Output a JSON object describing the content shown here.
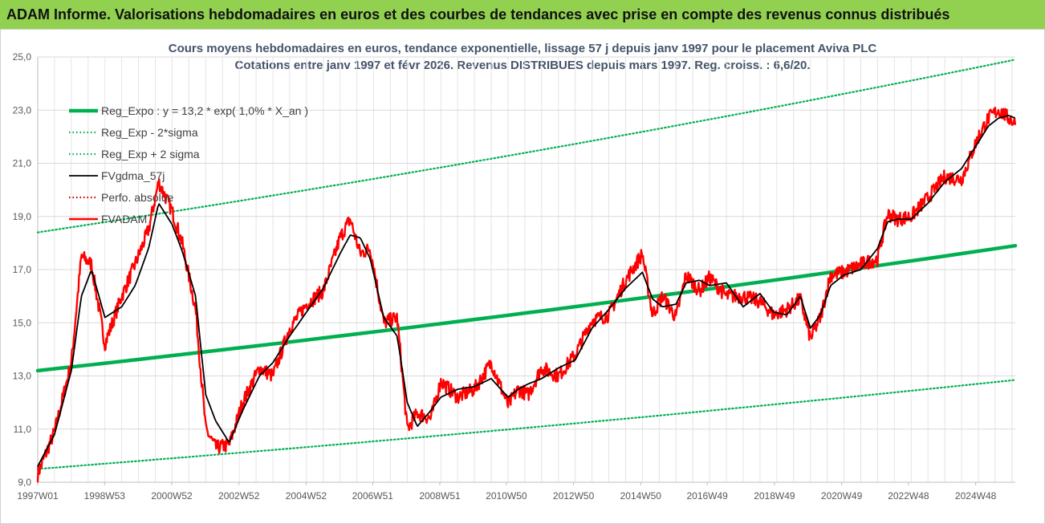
{
  "banner": "ADAM Informe. Valorisations hebdomadaires en euros et des courbes de tendances avec prise en compte des revenus connus distribués",
  "chart_data": {
    "type": "line",
    "title": "Cours moyens hebdomadaires en euros, tendance exponentielle, lissage 57 j depuis janv 1997 pour le placement Aviva PLC",
    "subtitle": "Cotations entre janv 1997 et févr 2026. Revenus DISTRIBUES depuis mars 1997. Reg. croiss. : 6,6/20.",
    "ylim": [
      9.0,
      25.0
    ],
    "y_ticks": [
      "9,0",
      "11,0",
      "13,0",
      "15,0",
      "17,0",
      "19,0",
      "21,0",
      "23,0",
      "25,0"
    ],
    "x_range": [
      1997.0,
      2026.1
    ],
    "x_ticks": [
      {
        "t": 1997.0,
        "label": "1997W01"
      },
      {
        "t": 1998.99,
        "label": "1998W53"
      },
      {
        "t": 2000.99,
        "label": "2000W52"
      },
      {
        "t": 2002.99,
        "label": "2002W52"
      },
      {
        "t": 2004.99,
        "label": "2004W52"
      },
      {
        "t": 2006.97,
        "label": "2006W51"
      },
      {
        "t": 2008.97,
        "label": "2008W51"
      },
      {
        "t": 2010.95,
        "label": "2010W50"
      },
      {
        "t": 2012.95,
        "label": "2012W50"
      },
      {
        "t": 2014.95,
        "label": "2014W50"
      },
      {
        "t": 2016.93,
        "label": "2016W49"
      },
      {
        "t": 2018.93,
        "label": "2018W49"
      },
      {
        "t": 2020.93,
        "label": "2020W49"
      },
      {
        "t": 2022.92,
        "label": "2022W48"
      },
      {
        "t": 2024.92,
        "label": "2024W48"
      }
    ],
    "grid": "vertical and horizontal, light gray",
    "legend_position": "top-left",
    "series": [
      {
        "name": "Reg_Expo : y = 13,2 * exp( 1,0% *  X_an )",
        "color": "#00b050",
        "style": "solid-thick",
        "x": [
          1997.0,
          2026.1
        ],
        "values": [
          13.2,
          17.9
        ]
      },
      {
        "name": "Reg_Exp - 2*sigma",
        "color": "#00b050",
        "style": "dotted",
        "x": [
          1997.0,
          2026.1
        ],
        "values": [
          9.5,
          12.85
        ]
      },
      {
        "name": "Reg_Exp + 2 sigma",
        "color": "#00b050",
        "style": "dotted",
        "x": [
          1997.0,
          2026.1
        ],
        "values": [
          18.4,
          24.9
        ]
      },
      {
        "name": "FVgdma_57j",
        "color": "#000000",
        "style": "solid",
        "x": [
          1997.0,
          1997.5,
          1998.0,
          1998.3,
          1998.6,
          1999.0,
          1999.5,
          1999.9,
          2000.3,
          2000.6,
          2001.0,
          2001.3,
          2001.7,
          2002.0,
          2002.3,
          2002.7,
          2003.1,
          2003.6,
          2004.0,
          2004.5,
          2005.0,
          2005.5,
          2006.0,
          2006.3,
          2006.6,
          2006.9,
          2007.3,
          2007.7,
          2008.0,
          2008.3,
          2008.7,
          2009.0,
          2009.5,
          2010.0,
          2010.5,
          2011.0,
          2011.3,
          2011.6,
          2012.0,
          2012.5,
          2013.0,
          2013.5,
          2014.0,
          2014.5,
          2015.0,
          2015.3,
          2015.6,
          2016.0,
          2016.3,
          2016.7,
          2017.0,
          2017.5,
          2018.0,
          2018.5,
          2018.9,
          2019.3,
          2019.7,
          2020.0,
          2020.3,
          2020.6,
          2021.0,
          2021.5,
          2022.0,
          2022.3,
          2022.6,
          2023.0,
          2023.5,
          2024.0,
          2024.5,
          2025.0,
          2025.3,
          2025.6,
          2025.9,
          2026.1
        ],
        "values": [
          9.6,
          10.8,
          13.2,
          16.0,
          17.0,
          15.2,
          15.6,
          16.4,
          17.8,
          19.5,
          18.7,
          17.7,
          16.0,
          12.3,
          11.3,
          10.5,
          11.7,
          13.0,
          13.5,
          14.5,
          15.4,
          16.3,
          17.6,
          18.3,
          18.2,
          17.4,
          15.2,
          14.5,
          12.0,
          11.1,
          11.7,
          12.2,
          12.5,
          12.6,
          12.9,
          12.2,
          12.5,
          12.7,
          12.9,
          13.3,
          13.6,
          14.8,
          15.5,
          16.3,
          16.9,
          15.9,
          15.6,
          15.7,
          16.5,
          16.6,
          16.4,
          16.5,
          15.6,
          16.1,
          15.4,
          15.3,
          16.0,
          14.8,
          15.3,
          16.4,
          16.8,
          17.0,
          17.8,
          18.8,
          18.9,
          18.9,
          19.5,
          20.3,
          20.8,
          21.8,
          22.4,
          22.7,
          22.8,
          22.7
        ]
      },
      {
        "name": "Perfo. absolue",
        "color": "#c00000",
        "style": "dotted",
        "x": [],
        "values": []
      },
      {
        "name": "FVADAM",
        "color": "#ff0000",
        "style": "solid-noisy",
        "x": [
          1997.0,
          1997.5,
          1998.0,
          1998.3,
          1998.6,
          1999.0,
          1999.5,
          1999.9,
          2000.3,
          2000.6,
          2001.0,
          2001.3,
          2001.7,
          2002.0,
          2002.3,
          2002.7,
          2003.1,
          2003.6,
          2004.0,
          2004.5,
          2005.0,
          2005.5,
          2006.0,
          2006.3,
          2006.6,
          2006.9,
          2007.3,
          2007.7,
          2008.0,
          2008.3,
          2008.7,
          2009.0,
          2009.5,
          2010.0,
          2010.5,
          2011.0,
          2011.3,
          2011.6,
          2012.0,
          2012.5,
          2013.0,
          2013.5,
          2014.0,
          2014.5,
          2015.0,
          2015.3,
          2015.6,
          2016.0,
          2016.3,
          2016.7,
          2017.0,
          2017.5,
          2018.0,
          2018.5,
          2018.9,
          2019.3,
          2019.7,
          2020.0,
          2020.3,
          2020.6,
          2021.0,
          2021.5,
          2022.0,
          2022.3,
          2022.6,
          2023.0,
          2023.5,
          2024.0,
          2024.5,
          2025.0,
          2025.3,
          2025.6,
          2025.9,
          2026.1
        ],
        "values": [
          9.3,
          10.9,
          13.5,
          17.5,
          17.2,
          14.2,
          16.0,
          17.2,
          18.5,
          20.3,
          19.2,
          18.0,
          15.5,
          11.0,
          10.3,
          10.4,
          12.0,
          13.3,
          13.0,
          14.8,
          15.7,
          16.2,
          18.2,
          18.9,
          17.6,
          17.8,
          15.0,
          15.2,
          11.0,
          11.6,
          11.4,
          12.8,
          12.2,
          12.5,
          13.5,
          11.9,
          12.5,
          12.3,
          13.3,
          13.0,
          13.8,
          15.1,
          15.3,
          16.6,
          17.6,
          15.3,
          16.0,
          15.2,
          16.8,
          16.2,
          16.7,
          16.0,
          16.0,
          15.8,
          15.3,
          15.5,
          15.9,
          14.4,
          15.2,
          16.8,
          16.9,
          17.2,
          17.4,
          19.1,
          18.9,
          19.0,
          19.7,
          20.5,
          20.4,
          22.0,
          22.7,
          23.0,
          22.7,
          22.5
        ]
      }
    ]
  }
}
